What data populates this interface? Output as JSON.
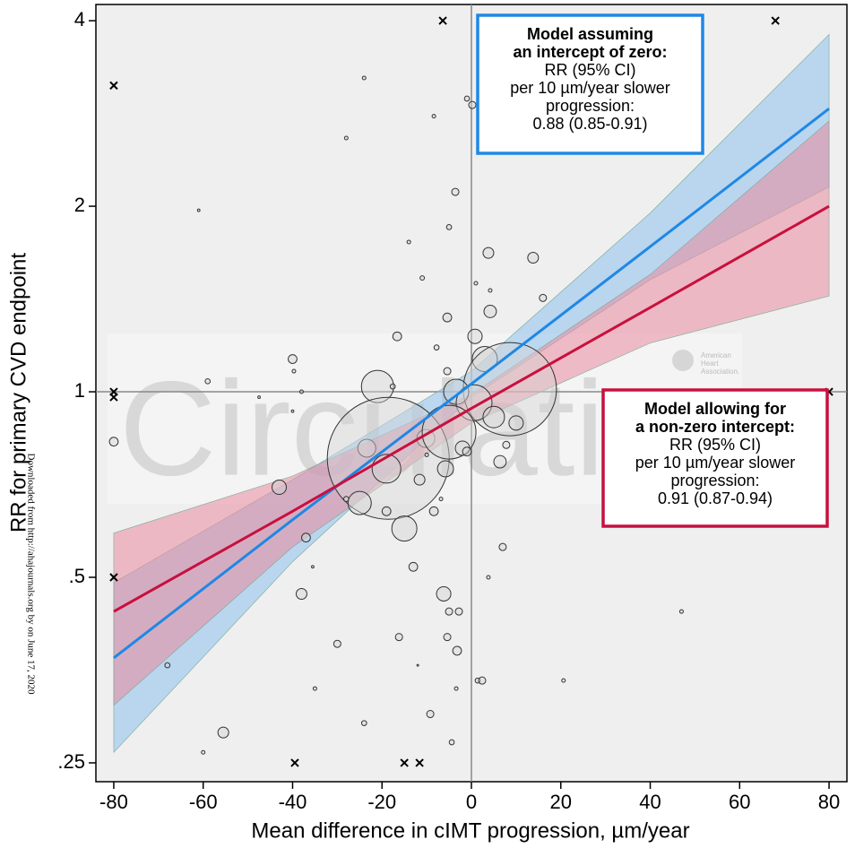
{
  "chart_data": {
    "type": "bubble",
    "x_label": "Mean difference in cIMT progression, µm/year",
    "y_label": "RR for primary CVD endpoint",
    "log_y": true,
    "xlim": [
      -84,
      84
    ],
    "ylim": [
      0.233,
      4.25
    ],
    "xticks": [
      -80,
      -60,
      -40,
      -20,
      0,
      20,
      40,
      60,
      80
    ],
    "yticks": [
      {
        "value": 0.25,
        "label": ".25"
      },
      {
        "value": 0.5,
        "label": ".5"
      },
      1,
      2,
      4
    ],
    "reference_x": 0,
    "reference_y": 1,
    "bubble_color": "#d4d4d4",
    "x": [
      -24,
      -1,
      0.2,
      -8.4,
      -28,
      -61,
      -3.6,
      -5,
      -14,
      3.8,
      13.8,
      -11,
      1,
      4.2,
      16,
      4.2,
      -5.4,
      -16.6,
      0.8,
      -7.8,
      -40,
      -39.7,
      -59,
      3,
      -5.4,
      -21,
      8.6,
      -3.4,
      -17.6,
      -38,
      -47.5,
      -40,
      0.6,
      5,
      10,
      -10.2,
      -23.4,
      -18.6,
      -5,
      -2,
      -1,
      6.4,
      7.8,
      -19,
      -5.8,
      -10,
      -11.6,
      -43,
      -25,
      -28,
      -6.8,
      -19,
      -8.4,
      -15,
      -37,
      7,
      -13,
      -35.5,
      3.8,
      -6.2,
      -38,
      47,
      -5,
      -2.8,
      -16.2,
      -5.4,
      -30,
      -3.2,
      -68,
      -12,
      20.6,
      1.4,
      2.4,
      -35,
      -3.4,
      -9.2,
      -24,
      -55.5,
      -4.4,
      -60,
      -80
    ],
    "values": [
      3.23,
      2.99,
      2.92,
      2.8,
      2.58,
      1.97,
      2.11,
      1.85,
      1.75,
      1.68,
      1.65,
      1.53,
      1.5,
      1.46,
      1.42,
      1.35,
      1.32,
      1.23,
      1.23,
      1.18,
      1.13,
      1.08,
      1.04,
      1.13,
      1.08,
      1.02,
      1.01,
      1.0,
      1.02,
      1.0,
      0.98,
      0.93,
      0.96,
      0.91,
      0.89,
      0.84,
      0.81,
      0.78,
      0.86,
      0.81,
      0.8,
      0.77,
      0.82,
      0.75,
      0.75,
      0.79,
      0.72,
      0.7,
      0.66,
      0.67,
      0.67,
      0.64,
      0.64,
      0.6,
      0.58,
      0.56,
      0.52,
      0.52,
      0.5,
      0.47,
      0.47,
      0.44,
      0.44,
      0.44,
      0.4,
      0.4,
      0.39,
      0.38,
      0.36,
      0.36,
      0.34,
      0.34,
      0.34,
      0.33,
      0.33,
      0.3,
      0.29,
      0.28,
      0.27,
      0.26,
      0.83
    ],
    "sizes": [
      1,
      2,
      4,
      1,
      1,
      0.5,
      4,
      2,
      1,
      9,
      9,
      1.5,
      1,
      1,
      4,
      12,
      6,
      6,
      16,
      2,
      6,
      1,
      2,
      49,
      4,
      81,
      676,
      49,
      2,
      1,
      0.5,
      0.5,
      100,
      36,
      16,
      25,
      25,
      1156,
      225,
      16,
      6,
      12,
      4,
      64,
      20,
      1,
      9,
      16,
      42,
      2,
      1,
      6,
      6,
      49,
      6,
      4,
      6,
      0.5,
      1,
      16,
      9,
      1,
      4,
      4,
      4,
      4,
      4,
      6,
      2,
      0.25,
      1,
      2,
      4,
      1,
      1,
      4,
      2,
      9,
      2,
      1,
      6
    ],
    "crosses": {
      "x": [
        -6.4,
        68,
        -80,
        -80,
        -80,
        -80,
        -39.5,
        -15,
        -11.6,
        80
      ],
      "values": [
        4,
        4,
        3.14,
        1,
        0.98,
        0.5,
        0.25,
        0.25,
        0.25,
        1
      ]
    },
    "series": [
      {
        "color": "#1e88e5",
        "band_color": "#8ec0ec",
        "x": [
          -80,
          -40,
          0,
          40,
          80
        ],
        "values": [
          0.37,
          0.62,
          1.03,
          1.72,
          2.88
        ],
        "lower": [
          0.26,
          0.53,
          0.98,
          1.52,
          2.15
        ],
        "upper": [
          0.49,
          0.72,
          1.08,
          1.95,
          3.8
        ]
      },
      {
        "color": "#c8103e",
        "band_color": "#e98a9f",
        "x": [
          -80,
          -40,
          0,
          40,
          80
        ],
        "values": [
          0.44,
          0.64,
          0.94,
          1.37,
          2.0
        ],
        "lower": [
          0.31,
          0.56,
          0.89,
          1.2,
          1.43
        ],
        "upper": [
          0.59,
          0.73,
          0.99,
          1.55,
          2.75
        ]
      }
    ],
    "annotations": [
      {
        "color": "#1e88e5",
        "bold": [
          "Model assuming",
          "an intercept of zero:"
        ],
        "lines": [
          "RR (95% CI)",
          "per 10 µm/year slower",
          "progression:",
          "0.88 (0.85-0.91)"
        ]
      },
      {
        "color": "#c8103e",
        "bold": [
          "Model allowing for",
          "a non-zero intercept:"
        ],
        "lines": [
          "RR (95% CI)",
          "per 10 µm/year slower",
          "progression:",
          "0.91 (0.87-0.94)"
        ]
      }
    ],
    "watermark": "Circulation",
    "logo_text": [
      "American",
      "Heart",
      "Association."
    ],
    "side_note": "Downloaded from http://ahajournals.org by on June 17, 2020"
  }
}
